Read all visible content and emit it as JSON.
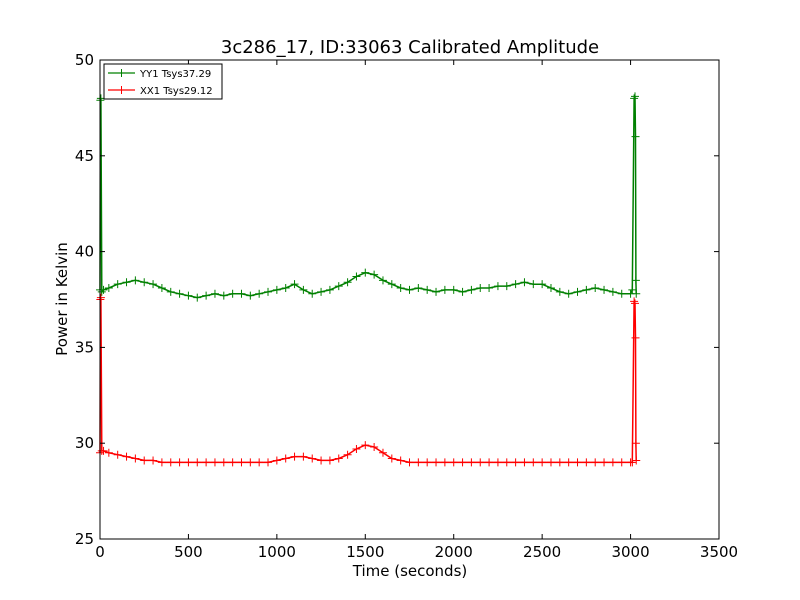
{
  "chart_data": {
    "type": "line",
    "title": "3c286_17, ID:33063 Calibrated Amplitude",
    "xlabel": "Time (seconds)",
    "ylabel": "Power in Kelvin",
    "xlim": [
      0,
      3500
    ],
    "ylim": [
      25,
      50
    ],
    "xticks": [
      0,
      500,
      1000,
      1500,
      2000,
      2500,
      3000,
      3500
    ],
    "yticks": [
      25,
      30,
      35,
      40,
      45,
      50
    ],
    "grid": false,
    "legend_position": "top-left",
    "series": [
      {
        "name": "YY1 Tsys37.29",
        "color": "#008000",
        "marker": "plus",
        "x": [
          0,
          2,
          5,
          10,
          20,
          50,
          100,
          150,
          200,
          250,
          300,
          350,
          400,
          450,
          500,
          550,
          600,
          650,
          700,
          750,
          800,
          850,
          900,
          950,
          1000,
          1050,
          1100,
          1150,
          1200,
          1250,
          1300,
          1350,
          1400,
          1450,
          1500,
          1550,
          1600,
          1650,
          1700,
          1750,
          1800,
          1850,
          1900,
          1950,
          2000,
          2050,
          2100,
          2150,
          2200,
          2250,
          2300,
          2350,
          2400,
          2450,
          2500,
          2550,
          2600,
          2650,
          2700,
          2750,
          2800,
          2850,
          2900,
          2950,
          3000,
          3010,
          3020,
          3025,
          3028,
          3030,
          3032
        ],
        "values": [
          38.0,
          47.9,
          48.0,
          37.9,
          38.0,
          38.1,
          38.3,
          38.4,
          38.5,
          38.4,
          38.3,
          38.1,
          37.9,
          37.8,
          37.7,
          37.6,
          37.7,
          37.8,
          37.7,
          37.8,
          37.8,
          37.7,
          37.8,
          37.9,
          38.0,
          38.1,
          38.3,
          38.0,
          37.8,
          37.9,
          38.0,
          38.2,
          38.4,
          38.7,
          38.9,
          38.8,
          38.5,
          38.3,
          38.1,
          38.0,
          38.1,
          38.0,
          37.9,
          38.0,
          38.0,
          37.9,
          38.0,
          38.1,
          38.1,
          38.2,
          38.2,
          38.3,
          38.4,
          38.3,
          38.3,
          38.1,
          37.9,
          37.8,
          37.9,
          38.0,
          38.1,
          38.0,
          37.9,
          37.8,
          37.8,
          38.0,
          48.0,
          48.1,
          46.0,
          38.5,
          37.8
        ]
      },
      {
        "name": "XX1 Tsys29.12",
        "color": "#ff0000",
        "marker": "plus",
        "x": [
          0,
          2,
          5,
          10,
          20,
          50,
          100,
          150,
          200,
          250,
          300,
          350,
          400,
          450,
          500,
          550,
          600,
          650,
          700,
          750,
          800,
          850,
          900,
          950,
          1000,
          1050,
          1100,
          1150,
          1200,
          1250,
          1300,
          1350,
          1400,
          1450,
          1500,
          1550,
          1600,
          1650,
          1700,
          1750,
          1800,
          1850,
          1900,
          1950,
          2000,
          2050,
          2100,
          2150,
          2200,
          2250,
          2300,
          2350,
          2400,
          2450,
          2500,
          2550,
          2600,
          2650,
          2700,
          2750,
          2800,
          2850,
          2900,
          2950,
          3000,
          3010,
          3020,
          3025,
          3028,
          3030,
          3032
        ],
        "values": [
          29.5,
          37.5,
          37.6,
          29.6,
          29.6,
          29.5,
          29.4,
          29.3,
          29.2,
          29.1,
          29.1,
          29.0,
          29.0,
          29.0,
          29.0,
          29.0,
          29.0,
          29.0,
          29.0,
          29.0,
          29.0,
          29.0,
          29.0,
          29.0,
          29.1,
          29.2,
          29.3,
          29.3,
          29.2,
          29.1,
          29.1,
          29.2,
          29.4,
          29.7,
          29.9,
          29.8,
          29.5,
          29.2,
          29.1,
          29.0,
          29.0,
          29.0,
          29.0,
          29.0,
          29.0,
          29.0,
          29.0,
          29.0,
          29.0,
          29.0,
          29.0,
          29.0,
          29.0,
          29.0,
          29.0,
          29.0,
          29.0,
          29.0,
          29.0,
          29.0,
          29.0,
          29.0,
          29.0,
          29.0,
          29.0,
          29.0,
          37.4,
          37.3,
          35.5,
          30.0,
          29.1
        ]
      }
    ]
  }
}
